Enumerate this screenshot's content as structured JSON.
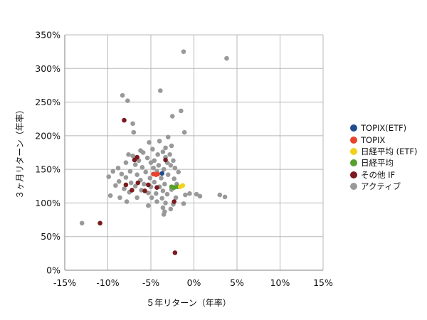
{
  "chart_data": {
    "type": "scatter",
    "title": "",
    "xlabel": "５年リターン（年率）",
    "ylabel": "３ヶ月リターン（年率）",
    "xlim": [
      -15,
      15
    ],
    "ylim": [
      0,
      350
    ],
    "x_ticks": [
      -15,
      -10,
      -5,
      0,
      5,
      10,
      15
    ],
    "y_ticks": [
      0,
      50,
      100,
      150,
      200,
      250,
      300,
      350
    ],
    "x_tick_labels": [
      "-15%",
      "-10%",
      "-5%",
      "0%",
      "5%",
      "10%",
      "15%"
    ],
    "y_tick_labels": [
      "0%",
      "50%",
      "100%",
      "150%",
      "200%",
      "250%",
      "300%",
      "350%"
    ],
    "grid": {
      "vertical": true,
      "horizontal": true
    },
    "legend_position": "right",
    "series": [
      {
        "name": "アクティブ",
        "color": "#999999",
        "points": [
          [
            -1.2,
            325
          ],
          [
            3.8,
            315
          ],
          [
            -3.9,
            267
          ],
          [
            -8.3,
            260
          ],
          [
            -7.7,
            252
          ],
          [
            -1.5,
            237
          ],
          [
            -2.5,
            229
          ],
          [
            -7.1,
            218
          ],
          [
            -7.0,
            205
          ],
          [
            -1.1,
            205
          ],
          [
            -3.0,
            198
          ],
          [
            -4.0,
            192
          ],
          [
            -5.2,
            190
          ],
          [
            -3.3,
            182
          ],
          [
            -6.2,
            178
          ],
          [
            -4.8,
            180
          ],
          [
            -2.6,
            185
          ],
          [
            -3.6,
            176
          ],
          [
            -5.9,
            175
          ],
          [
            -7.6,
            172
          ],
          [
            -7.1,
            170
          ],
          [
            -4.2,
            172
          ],
          [
            -2.8,
            172
          ],
          [
            -5.4,
            167
          ],
          [
            -3.3,
            168
          ],
          [
            -6.4,
            163
          ],
          [
            -4.6,
            163
          ],
          [
            -2.4,
            163
          ],
          [
            -7.9,
            160
          ],
          [
            -5.0,
            160
          ],
          [
            -3.1,
            160
          ],
          [
            -6.8,
            157
          ],
          [
            -4.1,
            156
          ],
          [
            -2.7,
            156
          ],
          [
            -8.8,
            152
          ],
          [
            -6.0,
            153
          ],
          [
            -4.7,
            152
          ],
          [
            -3.5,
            150
          ],
          [
            -2.2,
            152
          ],
          [
            -9.4,
            147
          ],
          [
            -7.4,
            147
          ],
          [
            -5.6,
            146
          ],
          [
            -4.3,
            147
          ],
          [
            -1.8,
            146
          ],
          [
            -8.4,
            143
          ],
          [
            -6.6,
            142
          ],
          [
            -3.0,
            142
          ],
          [
            -9.9,
            139
          ],
          [
            -7.9,
            138
          ],
          [
            -5.1,
            137
          ],
          [
            -3.8,
            137
          ],
          [
            -2.3,
            136
          ],
          [
            -6.2,
            134
          ],
          [
            -8.7,
            132
          ],
          [
            -4.6,
            131
          ],
          [
            -7.3,
            130
          ],
          [
            -5.8,
            128
          ],
          [
            -3.4,
            128
          ],
          [
            -2.0,
            128
          ],
          [
            -9.1,
            126
          ],
          [
            -6.8,
            125
          ],
          [
            -5.0,
            124
          ],
          [
            -4.0,
            124
          ],
          [
            -8.1,
            121
          ],
          [
            -6.1,
            119
          ],
          [
            -3.6,
            118
          ],
          [
            -2.6,
            120
          ],
          [
            -7.5,
            116
          ],
          [
            -5.3,
            115
          ],
          [
            -4.4,
            114
          ],
          [
            -3.1,
            113
          ],
          [
            -0.5,
            114
          ],
          [
            0.3,
            113
          ],
          [
            -9.7,
            111
          ],
          [
            -8.6,
            108
          ],
          [
            -6.6,
            108
          ],
          [
            -4.9,
            108
          ],
          [
            -3.7,
            107
          ],
          [
            -2.1,
            108
          ],
          [
            -1.0,
            112
          ],
          [
            0.7,
            110
          ],
          [
            3.0,
            112
          ],
          [
            3.6,
            109
          ],
          [
            -4.3,
            102
          ],
          [
            -3.3,
            100
          ],
          [
            -2.4,
            98
          ],
          [
            -1.2,
            99
          ],
          [
            -3.6,
            93
          ],
          [
            -2.7,
            91
          ],
          [
            -3.4,
            87
          ],
          [
            -3.5,
            83
          ],
          [
            -5.3,
            96
          ],
          [
            -7.8,
            102
          ],
          [
            -13.0,
            70
          ]
        ]
      },
      {
        "name": "その他 IF",
        "color": "#7b1a1f",
        "points": [
          [
            -8.1,
            223
          ],
          [
            -6.6,
            168
          ],
          [
            -6.9,
            164
          ],
          [
            -3.3,
            164
          ],
          [
            -6.5,
            130
          ],
          [
            -7.9,
            127
          ],
          [
            -5.3,
            127
          ],
          [
            -4.3,
            123
          ],
          [
            -7.2,
            119
          ],
          [
            -5.7,
            118
          ],
          [
            -2.3,
            102
          ],
          [
            -10.9,
            70
          ],
          [
            -2.2,
            26
          ]
        ]
      },
      {
        "name": "日経平均",
        "color": "#55a02f",
        "points": [
          [
            -2.6,
            124
          ],
          [
            -2.3,
            123
          ],
          [
            -1.9,
            124
          ]
        ]
      },
      {
        "name": "日経平均 (ETF)",
        "color": "#f0d21e",
        "points": [
          [
            -1.6,
            124
          ],
          [
            -1.3,
            126
          ]
        ]
      },
      {
        "name": "TOPIX",
        "color": "#e8432b",
        "points": [
          [
            -4.7,
            143
          ],
          [
            -4.4,
            142
          ],
          [
            -4.2,
            143
          ]
        ]
      },
      {
        "name": "TOPIX(ETF)",
        "color": "#1f4e8c",
        "points": [
          [
            -3.7,
            144
          ]
        ]
      }
    ],
    "legend": [
      {
        "name": "TOPIX(ETF)",
        "color": "#1f4e8c"
      },
      {
        "name": "TOPIX",
        "color": "#e8432b"
      },
      {
        "name": "日経平均 (ETF)",
        "color": "#f0d21e"
      },
      {
        "name": "日経平均",
        "color": "#55a02f"
      },
      {
        "name": "その他 IF",
        "color": "#7b1a1f"
      },
      {
        "name": "アクティブ",
        "color": "#999999"
      }
    ]
  }
}
